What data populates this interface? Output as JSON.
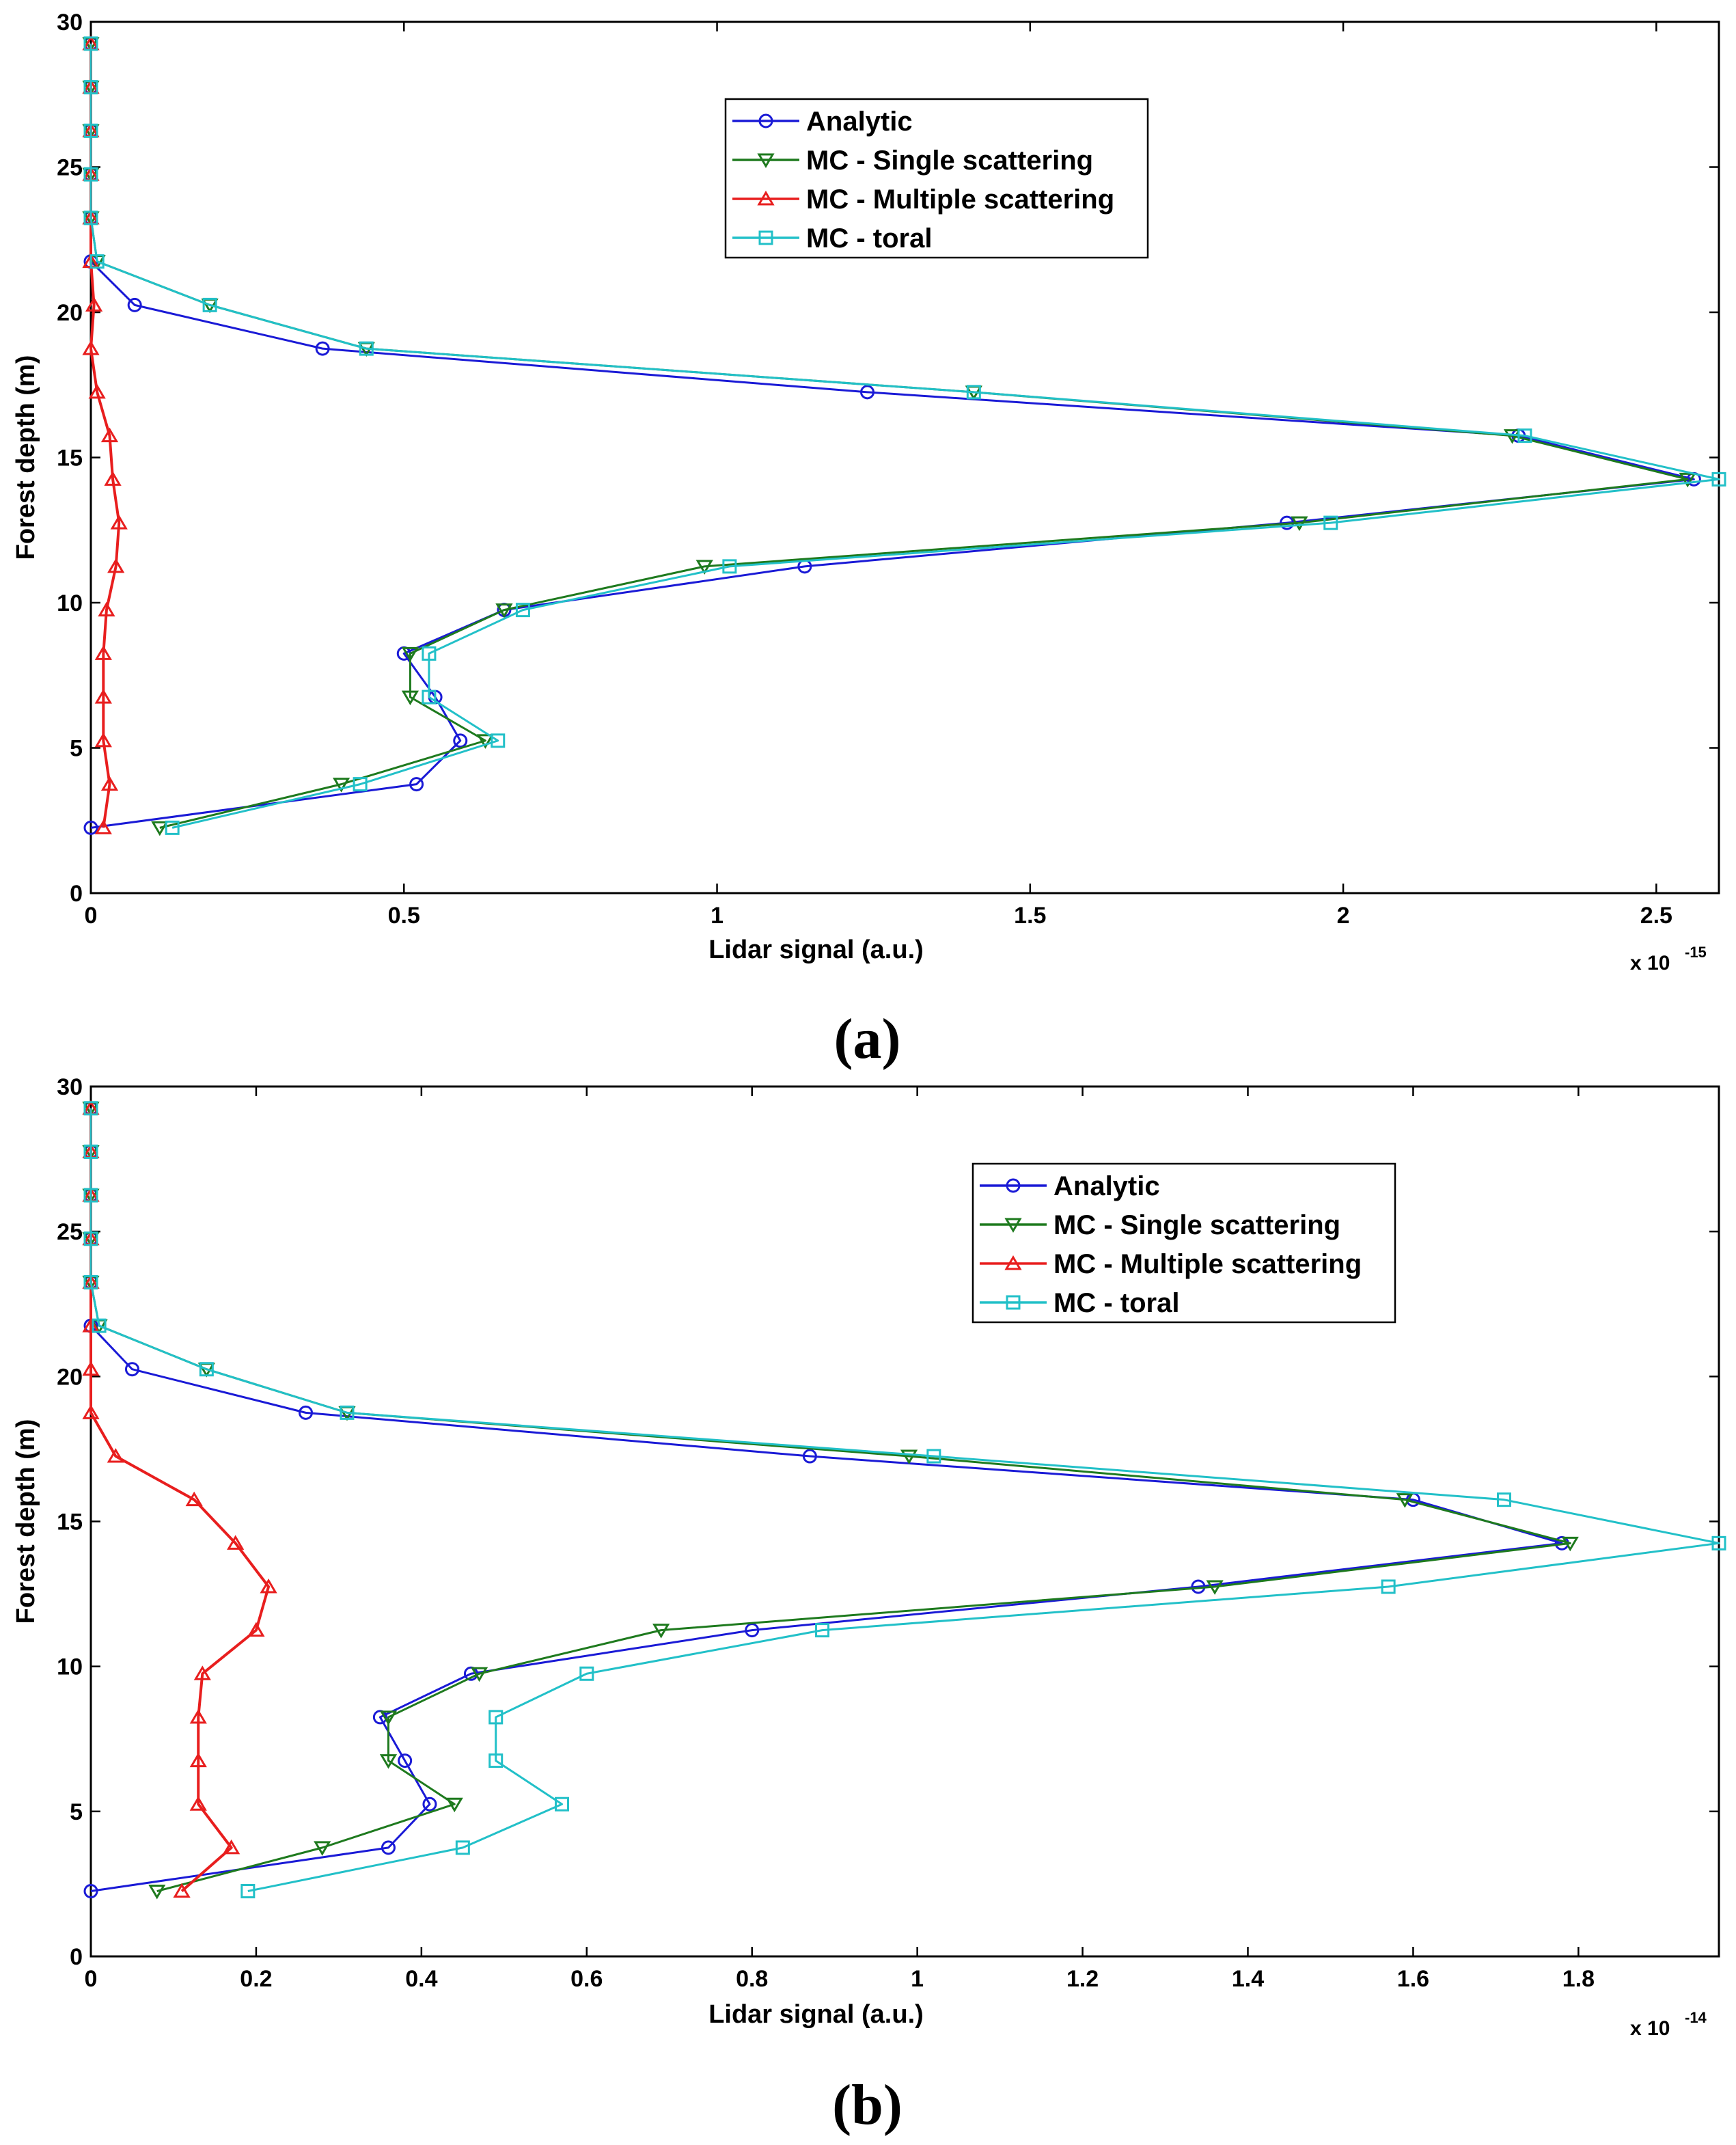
{
  "legend_entries": [
    "Analytic",
    "MC - Single scattering",
    "MC - Multiple scattering",
    "MC - toral"
  ],
  "colors": {
    "Analytic": "#1a1ad6",
    "MC - Single scattering": "#1e7a1e",
    "MC - Multiple scattering": "#e81e1e",
    "MC - toral": "#22c0c8"
  },
  "markers": {
    "Analytic": "circle",
    "MC - Single scattering": "triangle-down",
    "MC - Multiple scattering": "triangle-up",
    "MC - toral": "square"
  },
  "chart_data": [
    {
      "type": "line",
      "panel_label": "(a)",
      "xlabel": "Lidar signal (a.u.)",
      "ylabel": "Forest depth (m)",
      "x_multiplier": "x 10",
      "x_multiplier_exp": "-15",
      "xlim": [
        0,
        2.6
      ],
      "ylim": [
        0,
        30
      ],
      "xticks": [
        0,
        0.5,
        1,
        1.5,
        2,
        2.5
      ],
      "xtick_labels": [
        "0",
        "0.5",
        "1",
        "1.5",
        "2",
        "2.5"
      ],
      "yticks": [
        0,
        5,
        10,
        15,
        20,
        25,
        30
      ],
      "ytick_labels": [
        "0",
        "5",
        "10",
        "15",
        "20",
        "25",
        "30"
      ],
      "legend_position": "top-right",
      "y": [
        2.25,
        3.75,
        5.25,
        6.75,
        8.25,
        9.75,
        11.25,
        12.75,
        14.25,
        15.75,
        17.25,
        18.75,
        20.25,
        21.75,
        23.25,
        24.75,
        26.25,
        27.75,
        29.25
      ],
      "series": [
        {
          "name": "Analytic",
          "values": [
            0.0,
            0.52,
            0.59,
            0.55,
            0.5,
            0.66,
            1.14,
            1.91,
            2.56,
            2.28,
            1.24,
            0.37,
            0.07,
            0.0,
            0.0,
            0.0,
            0.0,
            0.0,
            0.0
          ]
        },
        {
          "name": "MC - Single scattering",
          "values": [
            0.11,
            0.4,
            0.63,
            0.51,
            0.51,
            0.66,
            0.98,
            1.93,
            2.55,
            2.27,
            1.41,
            0.44,
            0.19,
            0.01,
            0.0,
            0.0,
            0.0,
            0.0,
            0.0
          ]
        },
        {
          "name": "MC - Multiple scattering",
          "values": [
            0.02,
            0.03,
            0.02,
            0.02,
            0.02,
            0.025,
            0.04,
            0.045,
            0.035,
            0.03,
            0.01,
            0.0,
            0.005,
            0.0,
            0.0,
            0.0,
            0.0,
            0.0,
            0.0
          ]
        },
        {
          "name": "MC - toral",
          "values": [
            0.13,
            0.43,
            0.65,
            0.54,
            0.54,
            0.69,
            1.02,
            1.98,
            2.6,
            2.29,
            1.41,
            0.44,
            0.19,
            0.01,
            0.0,
            0.0,
            0.0,
            0.0,
            0.0
          ]
        }
      ]
    },
    {
      "type": "line",
      "panel_label": "(b)",
      "xlabel": "Lidar signal (a.u.)",
      "ylabel": "Forest depth (m)",
      "x_multiplier": "x 10",
      "x_multiplier_exp": "-14",
      "xlim": [
        0,
        1.97
      ],
      "ylim": [
        0,
        30
      ],
      "xticks": [
        0,
        0.2,
        0.4,
        0.6,
        0.8,
        1,
        1.2,
        1.4,
        1.6,
        1.8
      ],
      "xtick_labels": [
        "0",
        "0.2",
        "0.4",
        "0.6",
        "0.8",
        "1",
        "1.2",
        "1.4",
        "1.6",
        "1.8"
      ],
      "yticks": [
        0,
        5,
        10,
        15,
        20,
        25,
        30
      ],
      "ytick_labels": [
        "0",
        "5",
        "10",
        "15",
        "20",
        "25",
        "30"
      ],
      "legend_position": "top-right",
      "y": [
        2.25,
        3.75,
        5.25,
        6.75,
        8.25,
        9.75,
        11.25,
        12.75,
        14.25,
        15.75,
        17.25,
        18.75,
        20.25,
        21.75,
        23.25,
        24.75,
        26.25,
        27.75,
        29.25
      ],
      "series": [
        {
          "name": "Analytic",
          "values": [
            0.0,
            0.36,
            0.41,
            0.38,
            0.35,
            0.46,
            0.8,
            1.34,
            1.78,
            1.6,
            0.87,
            0.26,
            0.05,
            0.0,
            0.0,
            0.0,
            0.0,
            0.0,
            0.0
          ]
        },
        {
          "name": "MC - Single scattering",
          "values": [
            0.08,
            0.28,
            0.44,
            0.36,
            0.36,
            0.47,
            0.69,
            1.36,
            1.79,
            1.59,
            0.99,
            0.31,
            0.14,
            0.01,
            0.0,
            0.0,
            0.0,
            0.0,
            0.0
          ]
        },
        {
          "name": "MC - Multiple scattering",
          "values": [
            0.11,
            0.17,
            0.13,
            0.13,
            0.13,
            0.135,
            0.2,
            0.215,
            0.175,
            0.125,
            0.03,
            0.0,
            0.0,
            0.0,
            0.0,
            0.0,
            0.0,
            0.0,
            0.0
          ]
        },
        {
          "name": "MC - toral",
          "values": [
            0.19,
            0.45,
            0.57,
            0.49,
            0.49,
            0.6,
            0.885,
            1.57,
            1.97,
            1.71,
            1.02,
            0.31,
            0.14,
            0.01,
            0.0,
            0.0,
            0.0,
            0.0,
            0.0
          ]
        }
      ]
    }
  ]
}
